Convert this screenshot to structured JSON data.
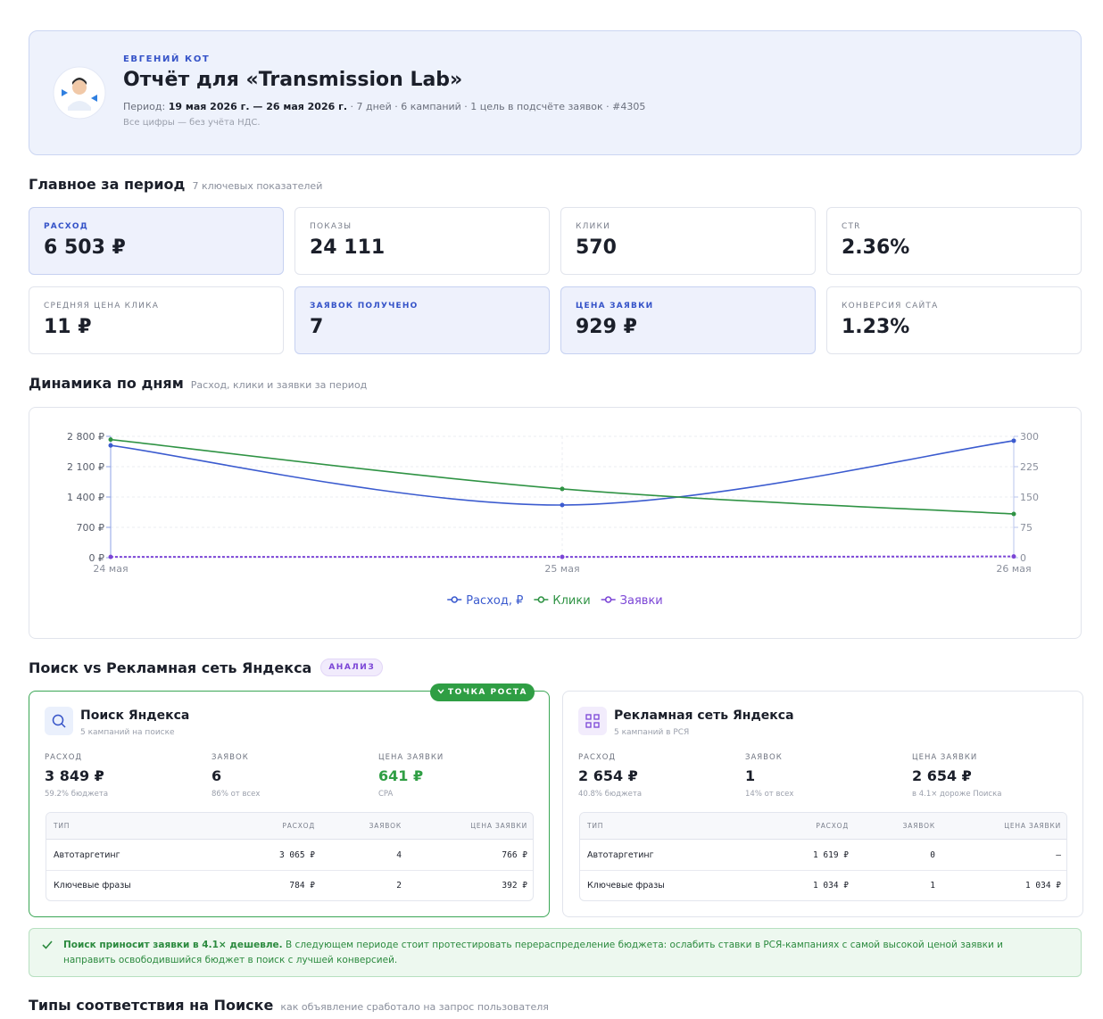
{
  "header": {
    "author": "ЕВГЕНИЙ КОТ",
    "title": "Отчёт для «Transmission Lab»",
    "period_label": "Период:",
    "period": "19 мая 2026 г. — 26 мая 2026 г.",
    "meta": "· 7 дней · 6 кампаний · 1 цель в подсчёте заявок · #4305",
    "note": "Все цифры — без учёта НДС."
  },
  "summary": {
    "title": "Главное за период",
    "subtitle": "7 ключевых показателей",
    "kpis": [
      {
        "label": "РАСХОД",
        "value": "6 503 ₽",
        "highlight": true
      },
      {
        "label": "ПОКАЗЫ",
        "value": "24 111",
        "highlight": false
      },
      {
        "label": "КЛИКИ",
        "value": "570",
        "highlight": false
      },
      {
        "label": "CTR",
        "value": "2.36%",
        "highlight": false
      },
      {
        "label": "СРЕДНЯЯ ЦЕНА КЛИКА",
        "value": "11 ₽",
        "highlight": false
      },
      {
        "label": "ЗАЯВОК ПОЛУЧЕНО",
        "value": "7",
        "highlight": true
      },
      {
        "label": "ЦЕНА ЗАЯВКИ",
        "value": "929 ₽",
        "highlight": true
      },
      {
        "label": "КОНВЕРСИЯ САЙТА",
        "value": "1.23%",
        "highlight": false
      }
    ]
  },
  "dynamics": {
    "title": "Динамика по дням",
    "subtitle": "Расход, клики и заявки за период",
    "chart_data": {
      "type": "line",
      "categories": [
        "24 мая",
        "25 мая",
        "26 мая"
      ],
      "ylim": [
        0,
        2800
      ],
      "yticks": [
        {
          "value": 0,
          "label": "0 ₽"
        },
        {
          "value": 700,
          "label": "700 ₽"
        },
        {
          "value": 1400,
          "label": "1 400 ₽"
        },
        {
          "value": 2100,
          "label": "2 100 ₽"
        },
        {
          "value": 2800,
          "label": "2 800 ₽"
        }
      ],
      "y2lim": [
        0,
        300
      ],
      "y2ticks": [
        0,
        75,
        150,
        225,
        300
      ],
      "grid": true,
      "series": [
        {
          "name": "Расход, ₽",
          "color": "#3b5bcf",
          "values": [
            2590,
            1215,
            2698
          ]
        },
        {
          "name": "Клики",
          "color": "#2f9344",
          "values": [
            292,
            170,
            108
          ],
          "axis": "y2"
        },
        {
          "name": "Заявки",
          "color": "#7b45d6",
          "values": [
            2,
            2,
            3
          ],
          "axis": "y2",
          "dashed": true
        }
      ]
    }
  },
  "comparison": {
    "title": "Поиск vs Рекламная сеть Яндекса",
    "badge": "АНАЛИЗ",
    "cards": [
      {
        "badge": "ТОЧКА РОСТА",
        "name": "Поиск Яндекса",
        "subtitle": "5 кампаний на поиске",
        "metrics": [
          {
            "label": "РАСХОД",
            "value": "3 849 ₽",
            "note": "59.2% бюджета"
          },
          {
            "label": "ЗАЯВОК",
            "value": "6",
            "note": "86% от всех"
          },
          {
            "label": "ЦЕНА ЗАЯВКИ",
            "value": "641 ₽",
            "note": "CPA",
            "color": "#2f9e44"
          }
        ],
        "columns": [
          "ТИП",
          "РАСХОД",
          "ЗАЯВОК",
          "ЦЕНА ЗАЯВКИ"
        ],
        "rows": [
          [
            "Автотаргетинг",
            "3 065 ₽",
            "4",
            "766 ₽"
          ],
          [
            "Ключевые фразы",
            "784 ₽",
            "2",
            "392 ₽"
          ]
        ]
      },
      {
        "name": "Рекламная сеть Яндекса",
        "subtitle": "5 кампаний в РСЯ",
        "metrics": [
          {
            "label": "РАСХОД",
            "value": "2 654 ₽",
            "note": "40.8% бюджета"
          },
          {
            "label": "ЗАЯВОК",
            "value": "1",
            "note": "14% от всех"
          },
          {
            "label": "ЦЕНА ЗАЯВКИ",
            "value": "2 654 ₽",
            "note": "в 4.1× дороже Поиска"
          }
        ],
        "columns": [
          "ТИП",
          "РАСХОД",
          "ЗАЯВОК",
          "ЦЕНА ЗАЯВКИ"
        ],
        "rows": [
          [
            "Автотаргетинг",
            "1 619 ₽",
            "0",
            "—"
          ],
          [
            "Ключевые фразы",
            "1 034 ₽",
            "1",
            "1 034 ₽"
          ]
        ]
      }
    ]
  },
  "callout": {
    "bold": "Поиск приносит заявки в 4.1× дешевле.",
    "text": "В следующем периоде стоит протестировать перераспределение бюджета: ослабить ставки в РСЯ-кампаниях с самой высокой ценой заявки и направить освободившийся бюджет в поиск с лучшей конверсией."
  },
  "next_section": {
    "title": "Типы соответствия на Поиске",
    "subtitle": "как объявление сработало на запрос пользователя"
  }
}
